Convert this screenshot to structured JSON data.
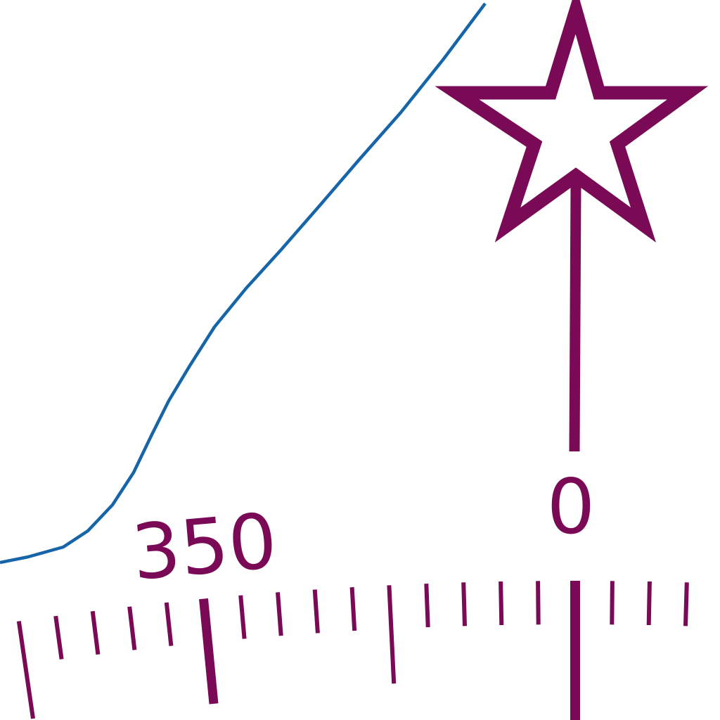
{
  "compass_rose": {
    "color": "#7a0a56",
    "north_marker": "star-icon",
    "labels": {
      "north": "0",
      "west_ten": "350"
    }
  },
  "contour": {
    "color": "#1565a8"
  }
}
